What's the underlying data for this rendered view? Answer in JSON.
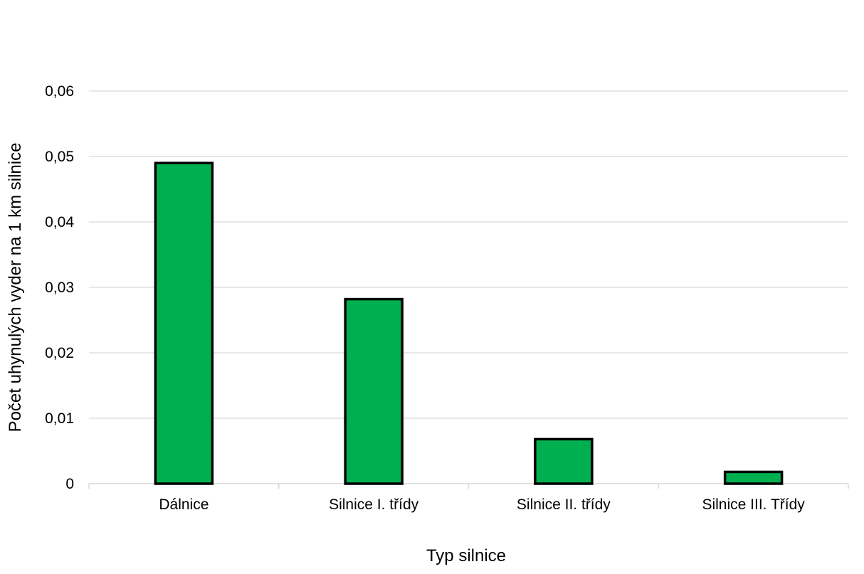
{
  "chart_data": {
    "type": "bar",
    "categories": [
      "Dálnice",
      "Silnice I. třídy",
      "Silnice II. třídy",
      "Silnice III. Třídy"
    ],
    "values": [
      0.049,
      0.0282,
      0.0068,
      0.0018
    ],
    "xlabel": "Typ silnice",
    "ylabel": "Počet uhynulých vyder na 1 km silnice",
    "ylim": [
      0,
      0.06
    ],
    "yticks": [
      "0",
      "0,01",
      "0,02",
      "0,03",
      "0,04",
      "0,05",
      "0,06"
    ],
    "grid": true,
    "bar_color": "#00B050",
    "bar_edge_color": "#000000",
    "grid_color": "#D9D9D9"
  }
}
